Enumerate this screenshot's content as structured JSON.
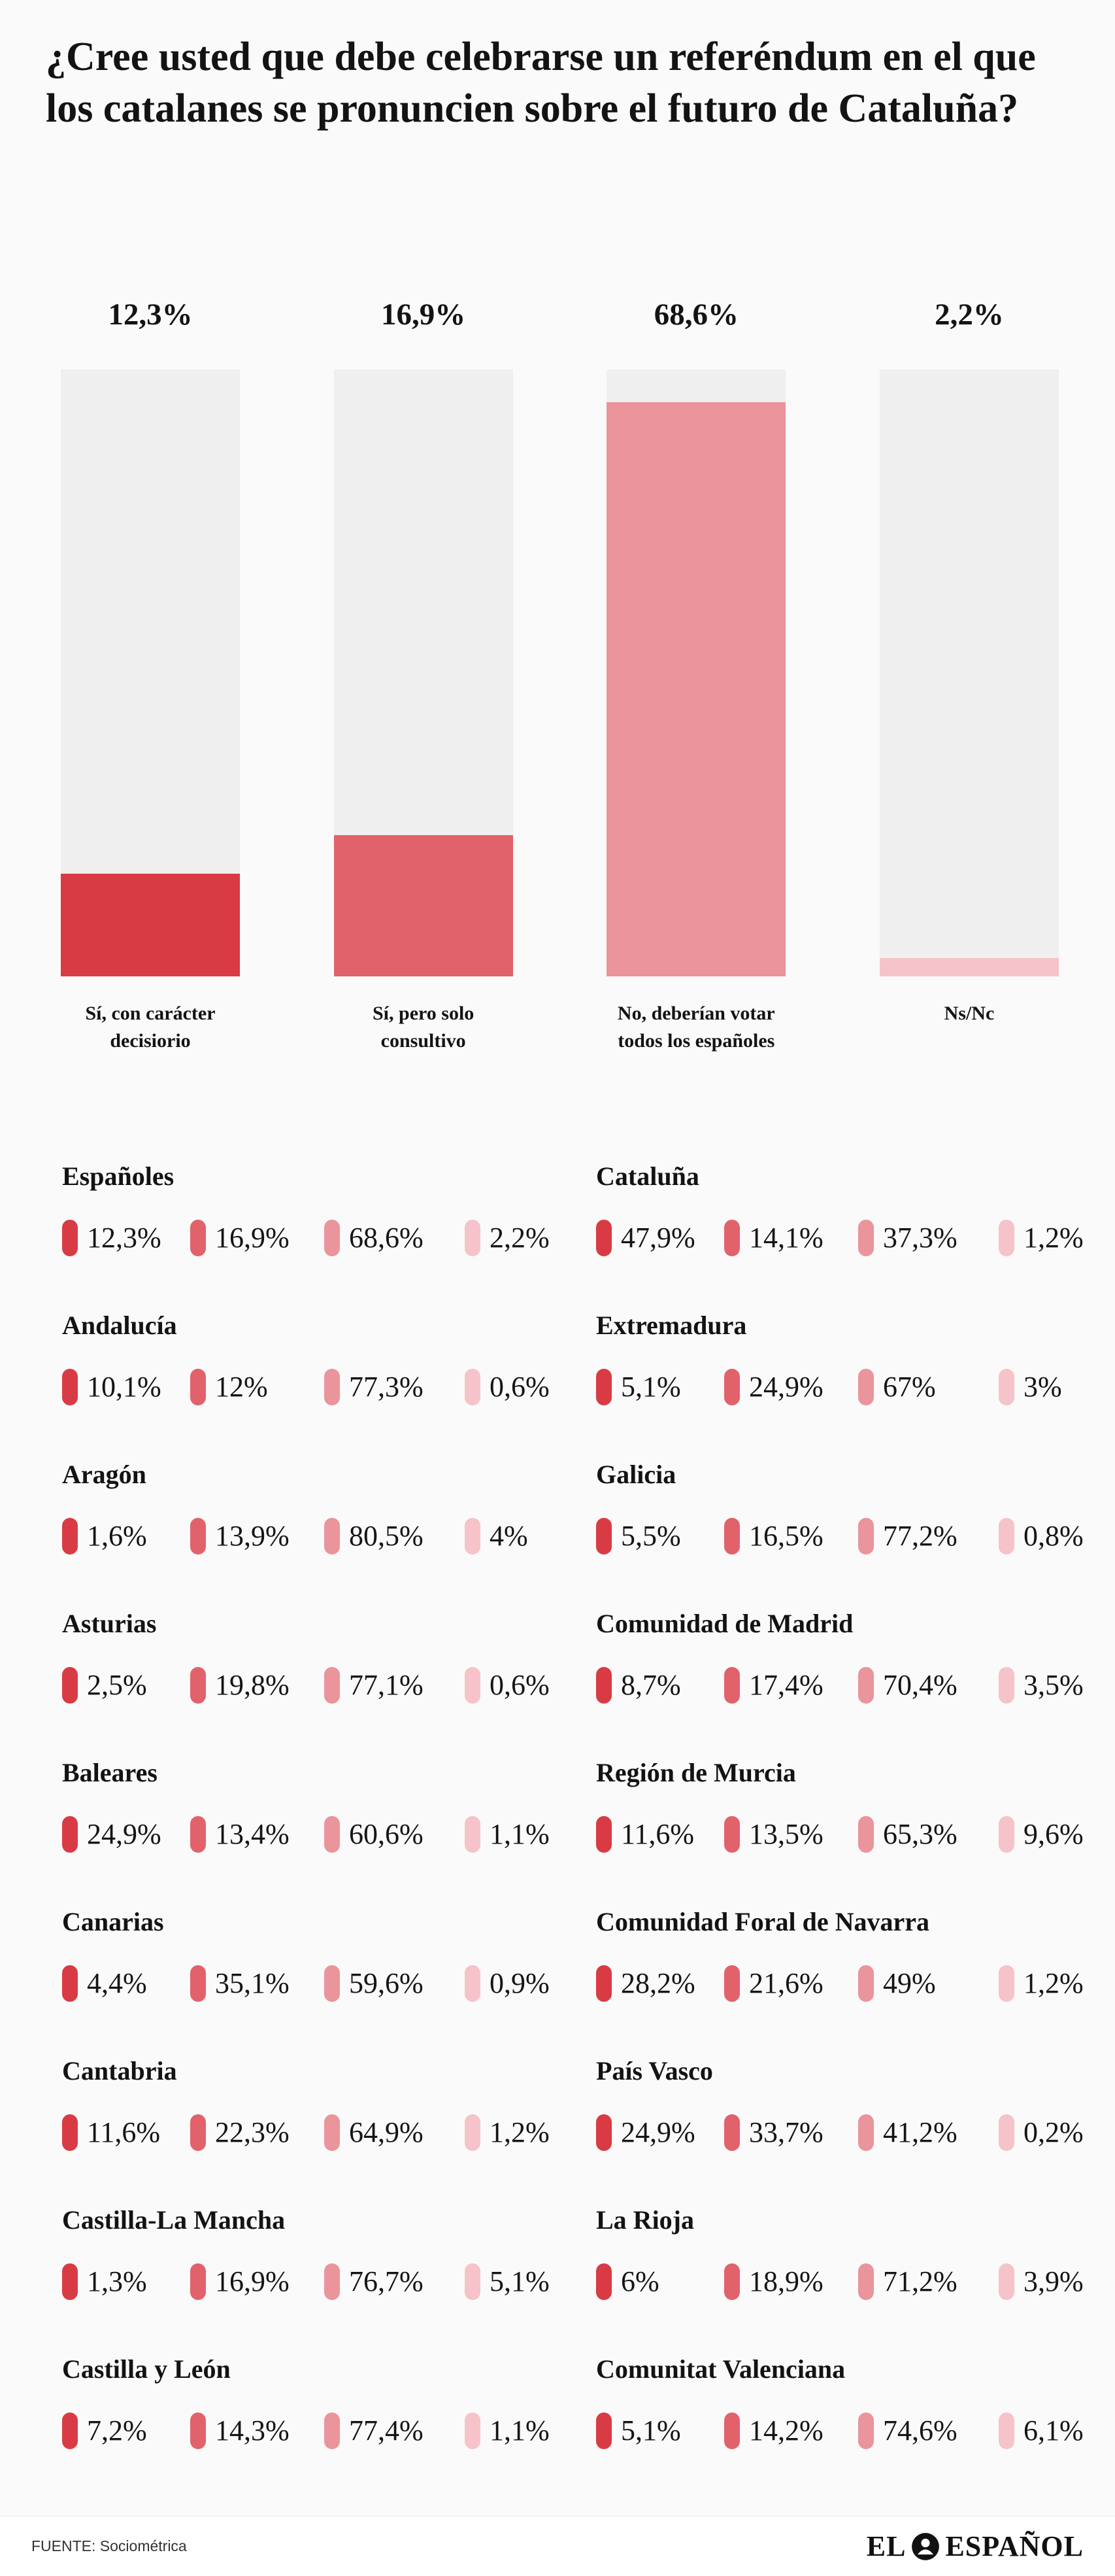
{
  "title": "¿Cree usted que debe celebrarse un referéndum en el que los catalanes se pronuncien sobre el futuro de Cataluña?",
  "colors": {
    "palette": [
      "#d93b44",
      "#e2626b",
      "#ea949b",
      "#f5c3c9"
    ],
    "track": "#f0eff0",
    "text": "#131313",
    "background": "#fafafa"
  },
  "chart_data": {
    "type": "bar",
    "title": "¿Cree usted que debe celebrarse un referéndum en el que los catalanes se pronuncien sobre el futuro de Cataluña?",
    "categories": [
      "Sí, con carácter decisiorio",
      "Sí, pero solo consultivo",
      "No, deberían votar todos los españoles",
      "Ns/Nc"
    ],
    "values": [
      12.3,
      16.9,
      68.6,
      2.2
    ],
    "value_labels": [
      "12,3%",
      "16,9%",
      "68,6%",
      "2,2%"
    ],
    "xlabel": "",
    "ylabel": "",
    "ylim": [
      0,
      72.5
    ],
    "grid": false,
    "legend_position": "none",
    "regions_left": [
      {
        "name": "Españoles",
        "values": [
          12.3,
          16.9,
          68.6,
          2.2
        ],
        "labels": [
          "12,3%",
          "16,9%",
          "68,6%",
          "2,2%"
        ]
      },
      {
        "name": "Andalucía",
        "values": [
          10.1,
          12,
          77.3,
          0.6
        ],
        "labels": [
          "10,1%",
          "12%",
          "77,3%",
          "0,6%"
        ]
      },
      {
        "name": "Aragón",
        "values": [
          1.6,
          13.9,
          80.5,
          4
        ],
        "labels": [
          "1,6%",
          "13,9%",
          "80,5%",
          "4%"
        ]
      },
      {
        "name": "Asturias",
        "values": [
          2.5,
          19.8,
          77.1,
          0.6
        ],
        "labels": [
          "2,5%",
          "19,8%",
          "77,1%",
          "0,6%"
        ]
      },
      {
        "name": "Baleares",
        "values": [
          24.9,
          13.4,
          60.6,
          1.1
        ],
        "labels": [
          "24,9%",
          "13,4%",
          "60,6%",
          "1,1%"
        ]
      },
      {
        "name": "Canarias",
        "values": [
          4.4,
          35.1,
          59.6,
          0.9
        ],
        "labels": [
          "4,4%",
          "35,1%",
          "59,6%",
          "0,9%"
        ]
      },
      {
        "name": "Cantabria",
        "values": [
          11.6,
          22.3,
          64.9,
          1.2
        ],
        "labels": [
          "11,6%",
          "22,3%",
          "64,9%",
          "1,2%"
        ]
      },
      {
        "name": "Castilla-La Mancha",
        "values": [
          1.3,
          16.9,
          76.7,
          5.1
        ],
        "labels": [
          "1,3%",
          "16,9%",
          "76,7%",
          "5,1%"
        ]
      },
      {
        "name": "Castilla y León",
        "values": [
          7.2,
          14.3,
          77.4,
          1.1
        ],
        "labels": [
          "7,2%",
          "14,3%",
          "77,4%",
          "1,1%"
        ]
      }
    ],
    "regions_right": [
      {
        "name": "Cataluña",
        "values": [
          47.9,
          14.1,
          37.3,
          1.2
        ],
        "labels": [
          "47,9%",
          "14,1%",
          "37,3%",
          "1,2%"
        ]
      },
      {
        "name": "Extremadura",
        "values": [
          5.1,
          24.9,
          67,
          3
        ],
        "labels": [
          "5,1%",
          "24,9%",
          "67%",
          "3%"
        ]
      },
      {
        "name": "Galicia",
        "values": [
          5.5,
          16.5,
          77.2,
          0.8
        ],
        "labels": [
          "5,5%",
          "16,5%",
          "77,2%",
          "0,8%"
        ]
      },
      {
        "name": "Comunidad de Madrid",
        "values": [
          8.7,
          17.4,
          70.4,
          3.5
        ],
        "labels": [
          "8,7%",
          "17,4%",
          "70,4%",
          "3,5%"
        ]
      },
      {
        "name": "Región de Murcia",
        "values": [
          11.6,
          13.5,
          65.3,
          9.6
        ],
        "labels": [
          "11,6%",
          "13,5%",
          "65,3%",
          "9,6%"
        ]
      },
      {
        "name": "Comunidad Foral de Navarra",
        "values": [
          28.2,
          21.6,
          49,
          1.2
        ],
        "labels": [
          "28,2%",
          "21,6%",
          "49%",
          "1,2%"
        ]
      },
      {
        "name": "País Vasco",
        "values": [
          24.9,
          33.7,
          41.2,
          0.2
        ],
        "labels": [
          "24,9%",
          "33,7%",
          "41,2%",
          "0,2%"
        ]
      },
      {
        "name": "La Rioja",
        "values": [
          6,
          18.9,
          71.2,
          3.9
        ],
        "labels": [
          "6%",
          "18,9%",
          "71,2%",
          "3,9%"
        ]
      },
      {
        "name": "Comunitat Valenciana",
        "values": [
          5.1,
          14.2,
          74.6,
          6.1
        ],
        "labels": [
          "5,1%",
          "14,2%",
          "74,6%",
          "6,1%"
        ]
      }
    ]
  },
  "footer": {
    "source": "FUENTE: Sociométrica",
    "brand_el": "EL",
    "brand_espanol": "ESPAÑOL"
  }
}
